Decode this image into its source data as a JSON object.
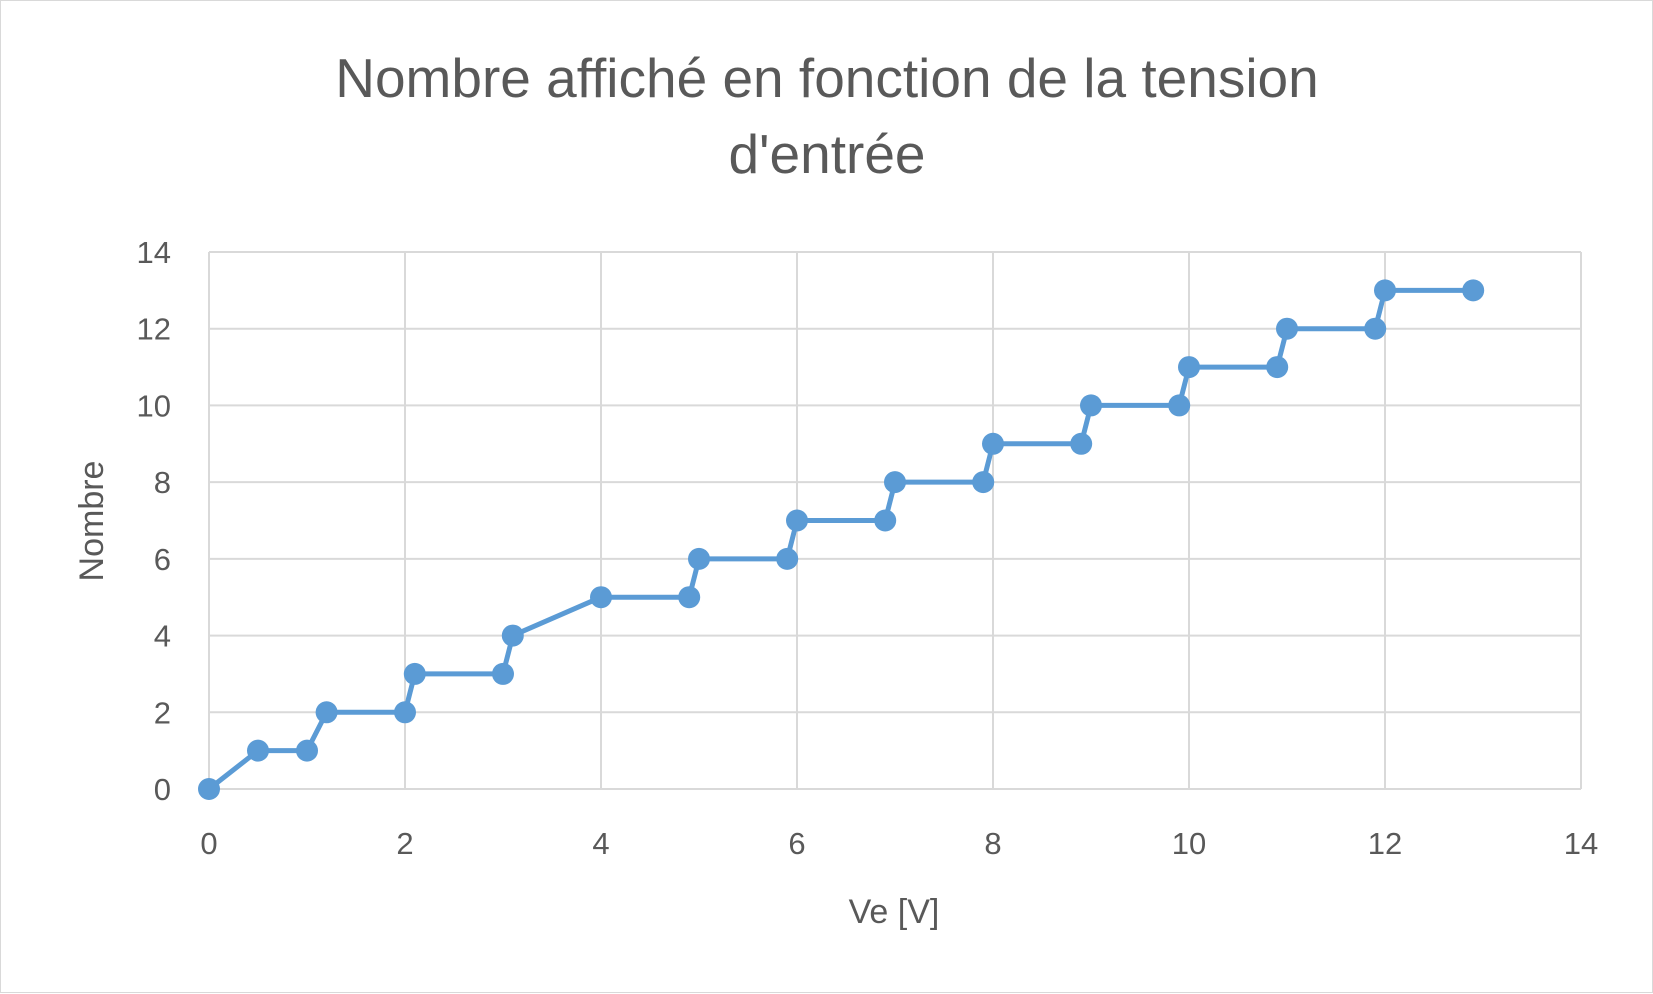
{
  "chart_data": {
    "type": "line",
    "title_lines": [
      "Nombre affiché en fonction de la tension",
      "d'entrée"
    ],
    "xlabel": "Ve [V]",
    "ylabel": "Nombre",
    "xlim": [
      0,
      14
    ],
    "ylim": [
      0,
      14
    ],
    "xticks": [
      "0",
      "2",
      "4",
      "6",
      "8",
      "10",
      "12",
      "14"
    ],
    "yticks": [
      "0",
      "2",
      "4",
      "6",
      "8",
      "10",
      "12",
      "14"
    ],
    "grid": true,
    "legend": "none",
    "series": [
      {
        "color": "#5b9bd5",
        "markers": true,
        "points": [
          [
            0,
            0
          ],
          [
            0.5,
            1
          ],
          [
            1,
            1
          ],
          [
            1.2,
            2
          ],
          [
            2,
            2
          ],
          [
            2.1,
            3
          ],
          [
            3,
            3
          ],
          [
            3.1,
            4
          ],
          [
            4,
            5
          ],
          [
            4.9,
            5
          ],
          [
            5,
            6
          ],
          [
            5.9,
            6
          ],
          [
            6,
            7
          ],
          [
            6.9,
            7
          ],
          [
            7,
            8
          ],
          [
            7.9,
            8
          ],
          [
            8,
            9
          ],
          [
            8.9,
            9
          ],
          [
            9,
            10
          ],
          [
            9.9,
            10
          ],
          [
            10,
            11
          ],
          [
            10.9,
            11
          ],
          [
            11,
            12
          ],
          [
            11.9,
            12
          ],
          [
            12,
            13
          ],
          [
            12.9,
            13
          ]
        ]
      }
    ],
    "colors": {
      "grid": "#d9d9d9",
      "text": "#595959",
      "series": "#5b9bd5"
    }
  }
}
